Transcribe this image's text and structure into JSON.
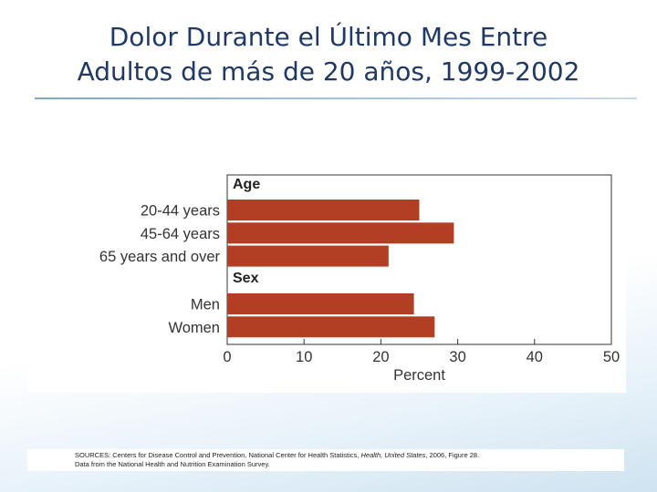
{
  "slide": {
    "title_line1": "Dolor Durante el Último Mes Entre",
    "title_line2": "Adultos de más de 20 años, 1999-2002"
  },
  "colors": {
    "bar": "#b23e24",
    "title": "#1f3864"
  },
  "chart_data": {
    "type": "bar",
    "orientation": "horizontal",
    "xlabel": "Percent",
    "xlim": [
      0,
      50
    ],
    "xticks": [
      0,
      10,
      20,
      30,
      40,
      50
    ],
    "grid": false,
    "groups": [
      {
        "label": "Age",
        "categories": [
          "20-44 years",
          "45-64 years",
          "65 years and over"
        ],
        "values": [
          25,
          29.5,
          21
        ]
      },
      {
        "label": "Sex",
        "categories": [
          "Men",
          "Women"
        ],
        "values": [
          24.3,
          27
        ]
      }
    ]
  },
  "source": {
    "line1_prefix": "SOURCES: Centers for Disease Control and Prevention, National Center for Health Statistics, ",
    "line1_italic": "Health, United States",
    "line1_suffix": ", 2006, Figure 28.",
    "line2": "Data from the National Health and Nutrition Examination Survey."
  }
}
